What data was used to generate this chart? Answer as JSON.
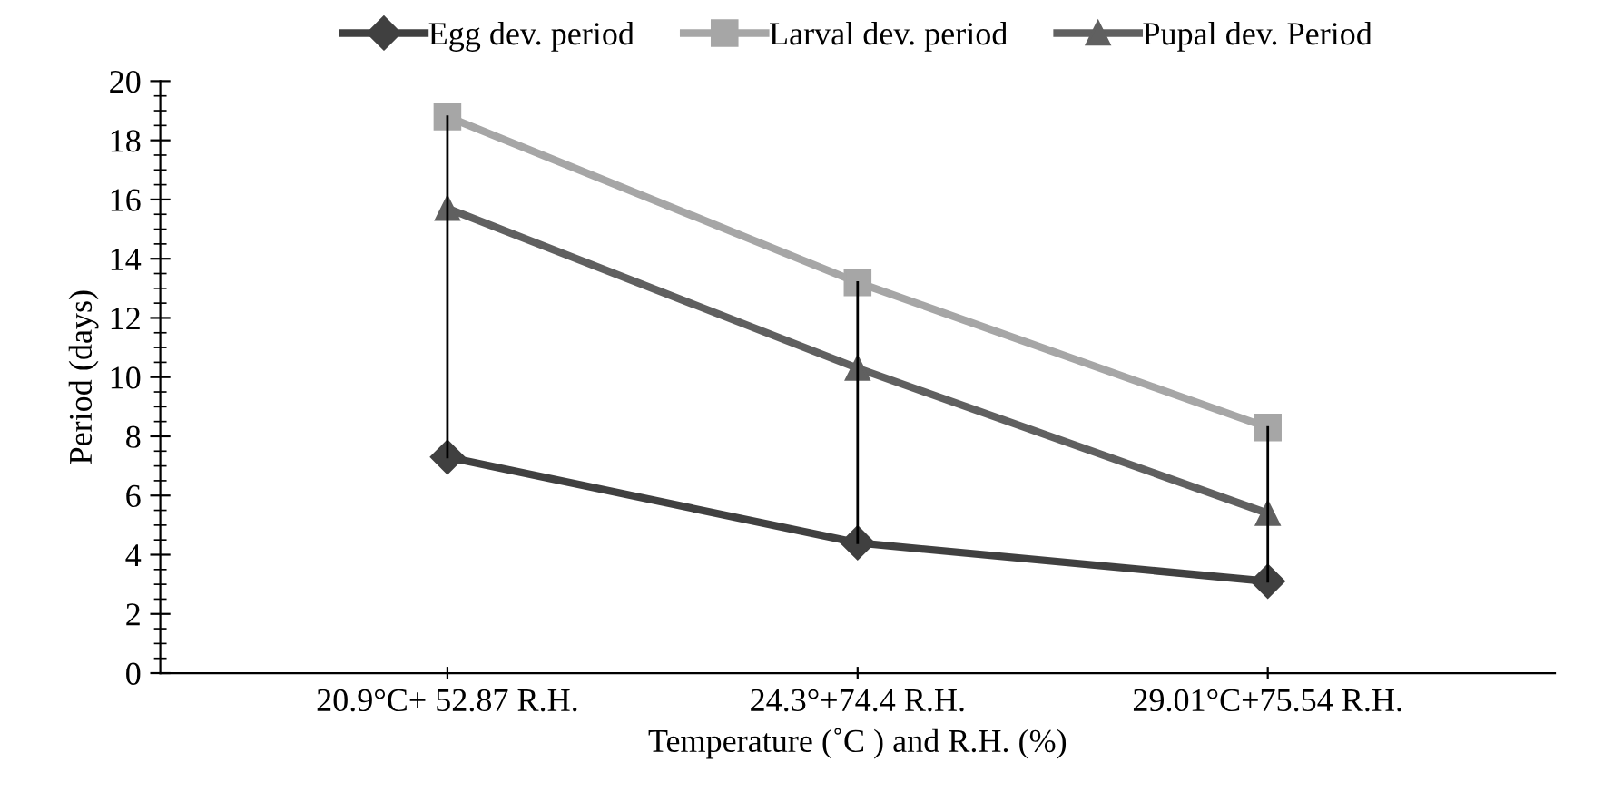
{
  "chart_data": {
    "type": "line",
    "xlabel": "Temperature (˚C ) and R.H. (%)",
    "ylabel": "Period (days)",
    "categories": [
      "20.9°C+ 52.87 R.H.",
      "24.3°+74.4 R.H.",
      "29.01°C+75.54 R.H."
    ],
    "series": [
      {
        "name": "Egg dev. period",
        "color": "#404040",
        "marker": "diamond",
        "values": [
          7.3,
          4.4,
          3.1
        ]
      },
      {
        "name": "Larval dev. period",
        "color": "#a6a6a6",
        "marker": "square",
        "values": [
          18.8,
          13.2,
          8.3
        ]
      },
      {
        "name": "Pupal dev. Period",
        "color": "#606060",
        "marker": "triangle",
        "values": [
          15.7,
          10.3,
          5.4
        ]
      },
      {
        "color": "#000000",
        "marker": "none",
        "x": [
          "20.9°C+ 52.87 R.H.",
          "20.9°C+ 52.87 R.H."
        ],
        "values": [
          18.8,
          7.3
        ]
      },
      {
        "color": "#000000",
        "marker": "none",
        "x": [
          "24.3°+74.4 R.H.",
          "24.3°+74.4 R.H."
        ],
        "values": [
          13.2,
          4.4
        ]
      },
      {
        "color": "#000000",
        "marker": "none",
        "x": [
          "29.01°C+75.54 R.H.",
          "29.01°C+75.54 R.H."
        ],
        "values": [
          8.3,
          3.1
        ]
      }
    ],
    "ylim": [
      0,
      20
    ],
    "yticks": [
      0,
      2,
      4,
      6,
      8,
      10,
      12,
      14,
      16,
      18,
      20
    ],
    "grid": false,
    "legend": "top",
    "line_style": "solid"
  }
}
